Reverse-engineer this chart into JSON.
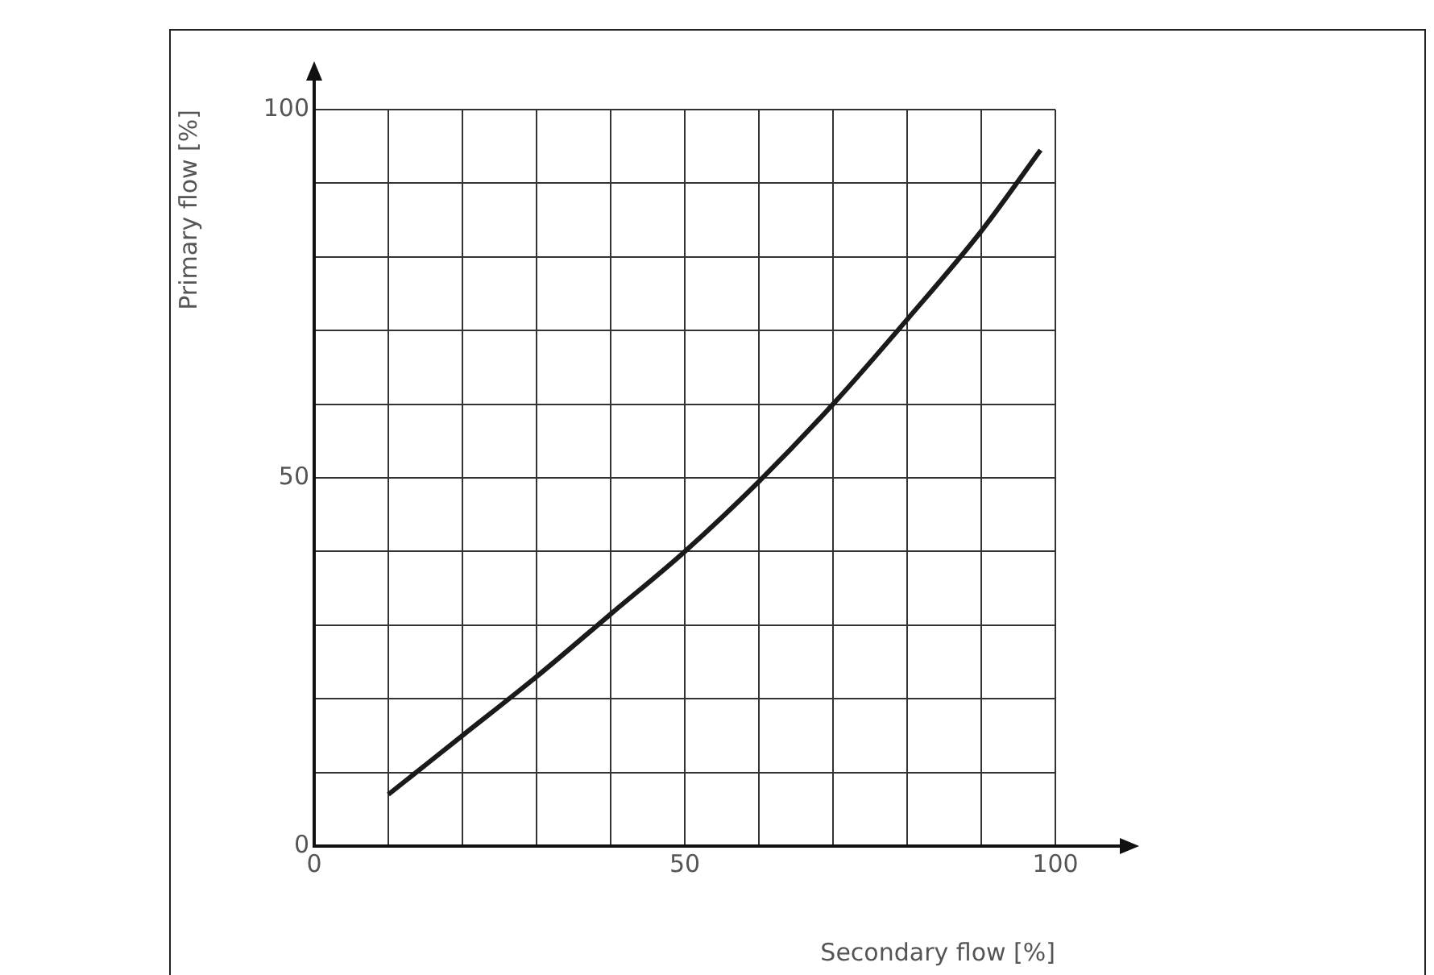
{
  "chart_data": {
    "type": "line",
    "xlabel": "Secondary flow [%]",
    "ylabel": "Primary flow [%]",
    "x": [
      10,
      20,
      30,
      40,
      50,
      60,
      70,
      80,
      90,
      98
    ],
    "series": [
      {
        "color": "#1a1a1a",
        "values": [
          7,
          15,
          23,
          31.5,
          40,
          49.5,
          60,
          71.5,
          83.5,
          94.5
        ]
      }
    ],
    "xlim": [
      0,
      100
    ],
    "ylim": [
      0,
      100
    ],
    "xticks": [
      0,
      {
        "value": 10,
        "label": null
      },
      {
        "value": 20,
        "label": null
      },
      {
        "value": 30,
        "label": null
      },
      {
        "value": 40,
        "label": null
      },
      50,
      {
        "value": 60,
        "label": null
      },
      {
        "value": 70,
        "label": null
      },
      {
        "value": 80,
        "label": null
      },
      {
        "value": 90,
        "label": null
      },
      100
    ],
    "yticks": [
      0,
      {
        "value": 10,
        "label": null
      },
      {
        "value": 20,
        "label": null
      },
      {
        "value": 30,
        "label": null
      },
      {
        "value": 40,
        "label": null
      },
      50,
      {
        "value": 60,
        "label": null
      },
      {
        "value": 70,
        "label": null
      },
      {
        "value": 80,
        "label": null
      },
      {
        "value": 90,
        "label": null
      },
      100
    ],
    "grid": true,
    "legend": false,
    "marker": "none",
    "line_style": "solid"
  }
}
